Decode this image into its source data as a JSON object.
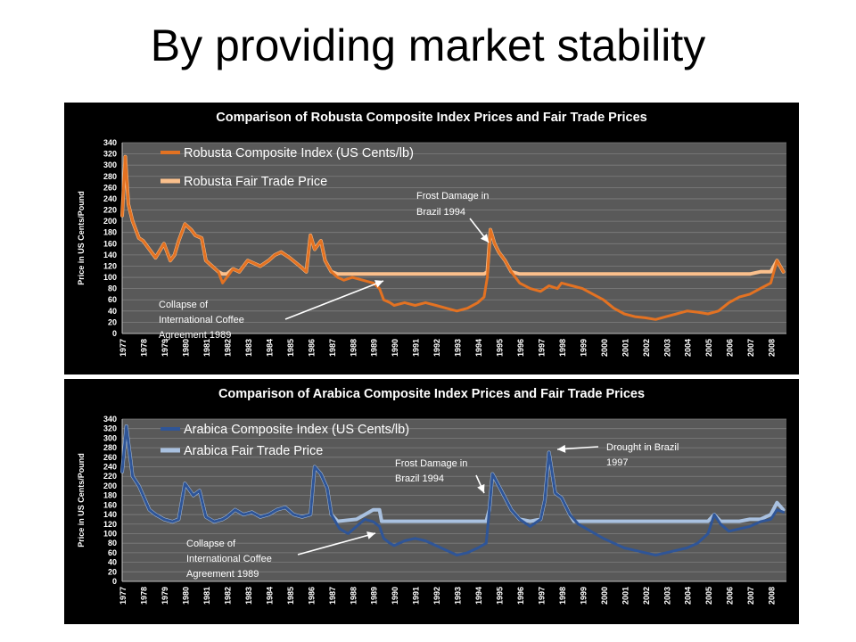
{
  "slide": {
    "title": "By providing market stability"
  },
  "chart_data": [
    {
      "type": "line",
      "title": "Comparison of Robusta Composite Index Prices and Fair Trade Prices",
      "xlabel": "",
      "ylabel": "Price in US Cents/Pound",
      "ylim": [
        0,
        340
      ],
      "xlim": [
        1977,
        2008.75
      ],
      "yticks": [
        "0",
        "20",
        "40",
        "60",
        "80",
        "100",
        "120",
        "140",
        "160",
        "180",
        "200",
        "220",
        "240",
        "260",
        "280",
        "300",
        "320",
        "340"
      ],
      "xticks": [
        "1977",
        "1978",
        "1979",
        "1980",
        "1981",
        "1982",
        "1983",
        "1984",
        "1985",
        "1986",
        "1987",
        "1988",
        "1989",
        "1990",
        "1991",
        "1992",
        "1993",
        "1994",
        "1995",
        "1996",
        "1997",
        "1998",
        "1999",
        "2000",
        "2001",
        "2002",
        "2003",
        "2004",
        "2005",
        "2006",
        "2007",
        "2008"
      ],
      "grid": true,
      "legend": "top-left",
      "series": [
        {
          "name": "Robusta Composite Index (US Cents/lb)",
          "color": "#E37222",
          "x": [
            1977,
            1977.15,
            1977.3,
            1977.5,
            1977.8,
            1978.0,
            1978.3,
            1978.6,
            1979.0,
            1979.3,
            1979.5,
            1979.7,
            1980.0,
            1980.3,
            1980.5,
            1980.8,
            1981.0,
            1981.3,
            1981.6,
            1981.8,
            1982.0,
            1982.3,
            1982.6,
            1983.0,
            1983.3,
            1983.6,
            1984.0,
            1984.3,
            1984.6,
            1985.0,
            1985.5,
            1985.8,
            1986.0,
            1986.2,
            1986.5,
            1986.7,
            1987.0,
            1987.3,
            1987.6,
            1988.0,
            1988.5,
            1989.0,
            1989.3,
            1989.5,
            1989.8,
            1990.0,
            1990.5,
            1991.0,
            1991.5,
            1992.0,
            1992.5,
            1993.0,
            1993.5,
            1994.0,
            1994.3,
            1994.45,
            1994.6,
            1994.8,
            1995.0,
            1995.3,
            1995.6,
            1996.0,
            1996.5,
            1997.0,
            1997.4,
            1997.8,
            1998.0,
            1998.5,
            1999.0,
            1999.5,
            2000.0,
            2000.5,
            2001.0,
            2001.5,
            2002.0,
            2002.5,
            2003.0,
            2003.5,
            2004.0,
            2004.5,
            2005.0,
            2005.5,
            2006.0,
            2006.5,
            2007.0,
            2007.5,
            2008.0,
            2008.3,
            2008.6
          ],
          "values": [
            210,
            315,
            230,
            200,
            170,
            165,
            150,
            135,
            160,
            130,
            140,
            165,
            195,
            185,
            175,
            170,
            130,
            120,
            110,
            90,
            100,
            115,
            110,
            130,
            125,
            120,
            130,
            140,
            145,
            135,
            120,
            110,
            175,
            150,
            165,
            130,
            110,
            100,
            95,
            100,
            95,
            90,
            80,
            60,
            55,
            50,
            55,
            50,
            55,
            50,
            45,
            40,
            45,
            55,
            65,
            100,
            185,
            160,
            145,
            130,
            110,
            90,
            80,
            75,
            85,
            80,
            90,
            85,
            80,
            70,
            60,
            45,
            35,
            30,
            28,
            25,
            30,
            35,
            40,
            38,
            35,
            40,
            55,
            65,
            70,
            80,
            90,
            130,
            110
          ]
        },
        {
          "name": "Robusta Fair Trade Price",
          "color": "#FBC08C",
          "x": [
            1977,
            1977.15,
            1977.3,
            1977.5,
            1977.8,
            1978.0,
            1978.3,
            1978.6,
            1979.0,
            1979.3,
            1979.5,
            1979.7,
            1980.0,
            1980.3,
            1980.5,
            1980.8,
            1981.0,
            1981.3,
            1981.6,
            1981.8,
            1982.0,
            1982.3,
            1982.6,
            1983.0,
            1983.3,
            1983.6,
            1984.0,
            1984.3,
            1984.6,
            1985.0,
            1985.5,
            1985.8,
            1986.0,
            1986.2,
            1986.5,
            1986.7,
            1987.0,
            1987.3,
            1994.3,
            1994.45,
            1994.6,
            1994.8,
            1995.0,
            1995.3,
            1995.6,
            1996.0,
            2007.0,
            2007.5,
            2008.0,
            2008.3,
            2008.6
          ],
          "values": [
            210,
            315,
            230,
            200,
            170,
            165,
            150,
            135,
            160,
            130,
            140,
            165,
            195,
            185,
            175,
            170,
            130,
            120,
            110,
            106,
            106,
            115,
            110,
            130,
            125,
            120,
            130,
            140,
            145,
            135,
            120,
            110,
            175,
            150,
            165,
            130,
            110,
            106,
            106,
            110,
            185,
            160,
            145,
            130,
            110,
            106,
            106,
            110,
            110,
            130,
            110
          ]
        }
      ],
      "annotations": [
        {
          "text": [
            "Frost Damage in",
            "Brazil 1994"
          ]
        },
        {
          "text": [
            "Collapse of",
            "International Coffee",
            "Agreement 1989"
          ]
        }
      ]
    },
    {
      "type": "line",
      "title": "Comparison of Arabica Composite Index Prices and Fair Trade Prices",
      "xlabel": "",
      "ylabel": "Price in US Cents/Pound",
      "ylim": [
        0,
        340
      ],
      "xlim": [
        1977,
        2008.75
      ],
      "yticks": [
        "0",
        "20",
        "40",
        "60",
        "80",
        "100",
        "120",
        "140",
        "160",
        "180",
        "200",
        "220",
        "240",
        "260",
        "280",
        "300",
        "320",
        "340"
      ],
      "xticks": [
        "1977",
        "1978",
        "1979",
        "1980",
        "1981",
        "1982",
        "1983",
        "1984",
        "1985",
        "1986",
        "1987",
        "1988",
        "1989",
        "1990",
        "1991",
        "1992",
        "1993",
        "1994",
        "1995",
        "1996",
        "1997",
        "1998",
        "1999",
        "2000",
        "2001",
        "2002",
        "2003",
        "2004",
        "2005",
        "2006",
        "2007",
        "2008"
      ],
      "grid": true,
      "legend": "top-left",
      "series": [
        {
          "name": "Arabica Composite Index (US Cents/lb)",
          "color": "#2F5597",
          "x": [
            1977,
            1977.2,
            1977.5,
            1977.8,
            1978.0,
            1978.3,
            1978.6,
            1979.0,
            1979.4,
            1979.7,
            1980.0,
            1980.4,
            1980.7,
            1981.0,
            1981.4,
            1981.8,
            1982.0,
            1982.4,
            1982.8,
            1983.2,
            1983.6,
            1984.0,
            1984.4,
            1984.8,
            1985.2,
            1985.6,
            1986.0,
            1986.2,
            1986.5,
            1986.8,
            1987.0,
            1987.4,
            1987.8,
            1988.2,
            1988.6,
            1989.0,
            1989.3,
            1989.5,
            1989.8,
            1990.0,
            1990.5,
            1991.0,
            1991.5,
            1992.0,
            1992.5,
            1993.0,
            1993.5,
            1994.0,
            1994.4,
            1994.55,
            1994.7,
            1995.0,
            1995.3,
            1995.6,
            1996.0,
            1996.5,
            1997.0,
            1997.2,
            1997.4,
            1997.7,
            1998.0,
            1998.4,
            1998.8,
            1999.2,
            1999.6,
            2000.0,
            2000.5,
            2001.0,
            2001.5,
            2002.0,
            2002.5,
            2003.0,
            2003.5,
            2004.0,
            2004.5,
            2005.0,
            2005.3,
            2005.6,
            2006.0,
            2006.5,
            2007.0,
            2007.5,
            2008.0,
            2008.3,
            2008.6
          ],
          "values": [
            230,
            325,
            220,
            200,
            180,
            150,
            140,
            130,
            125,
            130,
            205,
            180,
            190,
            135,
            125,
            130,
            135,
            150,
            140,
            145,
            135,
            140,
            150,
            155,
            140,
            135,
            140,
            240,
            225,
            195,
            140,
            110,
            100,
            115,
            130,
            125,
            115,
            90,
            80,
            75,
            85,
            90,
            85,
            75,
            65,
            55,
            60,
            70,
            80,
            150,
            225,
            200,
            175,
            150,
            130,
            115,
            130,
            170,
            270,
            185,
            175,
            140,
            120,
            110,
            100,
            90,
            80,
            70,
            65,
            60,
            55,
            60,
            65,
            70,
            80,
            100,
            140,
            120,
            105,
            110,
            115,
            125,
            130,
            150,
            145
          ]
        },
        {
          "name": "Arabica Fair Trade Price",
          "color": "#A9C1E0",
          "x": [
            1977,
            1977.2,
            1977.5,
            1977.8,
            1978.0,
            1978.3,
            1978.6,
            1979.0,
            1979.4,
            1979.7,
            1980.0,
            1980.4,
            1980.7,
            1981.0,
            1981.4,
            1981.8,
            1982.0,
            1982.4,
            1982.8,
            1983.2,
            1983.6,
            1984.0,
            1984.4,
            1984.8,
            1985.2,
            1985.6,
            1986.0,
            1986.2,
            1986.5,
            1986.8,
            1987.0,
            1987.3,
            1988.2,
            1988.6,
            1989.0,
            1989.3,
            1989.4,
            1994.4,
            1994.55,
            1994.7,
            1995.0,
            1995.3,
            1995.6,
            1996.0,
            1996.5,
            1997.0,
            1997.2,
            1997.4,
            1997.7,
            1998.0,
            1998.4,
            1998.6,
            2005.0,
            2005.3,
            2005.6,
            2006.0,
            2006.5,
            2007.0,
            2007.5,
            2008.0,
            2008.3,
            2008.6
          ],
          "values": [
            230,
            325,
            220,
            200,
            180,
            150,
            140,
            130,
            125,
            130,
            205,
            180,
            190,
            135,
            125,
            130,
            135,
            150,
            140,
            145,
            135,
            140,
            150,
            155,
            140,
            135,
            140,
            240,
            225,
            195,
            140,
            126,
            130,
            140,
            150,
            150,
            126,
            126,
            150,
            225,
            200,
            175,
            150,
            130,
            126,
            130,
            170,
            270,
            185,
            175,
            140,
            126,
            126,
            140,
            126,
            126,
            126,
            130,
            130,
            140,
            165,
            150
          ]
        }
      ],
      "annotations": [
        {
          "text": [
            "Frost Damage in",
            "Brazil 1994"
          ]
        },
        {
          "text": [
            "Drought in Brazil",
            "1997"
          ]
        },
        {
          "text": [
            "Collapse of",
            "International Coffee",
            "Agreement 1989"
          ]
        }
      ]
    }
  ]
}
